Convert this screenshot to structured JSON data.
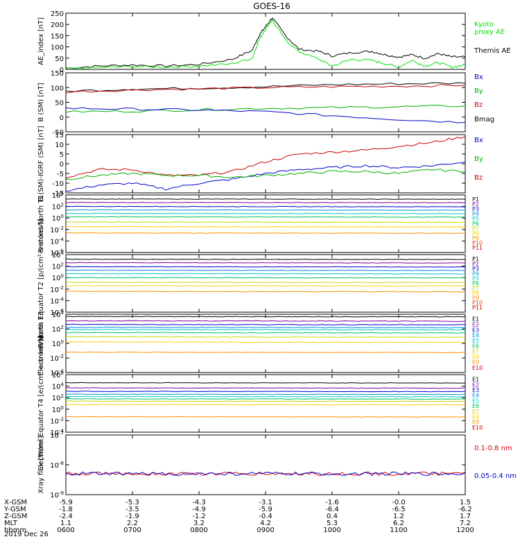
{
  "title": "GOES-16",
  "date_label": "2019 Dec 26",
  "chart_data": [
    {
      "type": "line",
      "ylabel": "AE_index [nT]",
      "ylim": [
        0,
        250
      ],
      "yticks": [
        0,
        50,
        100,
        150,
        200,
        250
      ],
      "yscale": "linear",
      "legend": [
        "Kyoto proxy AE",
        "Themis AE"
      ],
      "legend_colors": [
        "#00e000",
        "#000000"
      ],
      "series": [
        {
          "name": "Themis AE",
          "color": "#000000",
          "values": [
            [
              6,
              5
            ],
            [
              6.5,
              15
            ],
            [
              7,
              20
            ],
            [
              7.5,
              15
            ],
            [
              8,
              22
            ],
            [
              8.5,
              45
            ],
            [
              8.8,
              85
            ],
            [
              8.9,
              150
            ],
            [
              9,
              190
            ],
            [
              9.1,
              230
            ],
            [
              9.3,
              150
            ],
            [
              9.5,
              90
            ],
            [
              9.8,
              80
            ],
            [
              10,
              60
            ],
            [
              10.3,
              75
            ],
            [
              10.6,
              80
            ],
            [
              10.8,
              65
            ],
            [
              11,
              55
            ],
            [
              11.2,
              65
            ],
            [
              11.4,
              50
            ],
            [
              11.6,
              70
            ],
            [
              11.8,
              55
            ],
            [
              12,
              55
            ]
          ]
        },
        {
          "name": "Kyoto proxy AE",
          "color": "#00e000",
          "values": [
            [
              6,
              2
            ],
            [
              6.5,
              8
            ],
            [
              7,
              12
            ],
            [
              7.5,
              10
            ],
            [
              8,
              15
            ],
            [
              8.5,
              25
            ],
            [
              8.8,
              50
            ],
            [
              8.9,
              130
            ],
            [
              9,
              180
            ],
            [
              9.1,
              220
            ],
            [
              9.3,
              130
            ],
            [
              9.5,
              80
            ],
            [
              9.8,
              45
            ],
            [
              10,
              15
            ],
            [
              10.3,
              45
            ],
            [
              10.6,
              40
            ],
            [
              10.8,
              25
            ],
            [
              11,
              10
            ],
            [
              11.2,
              40
            ],
            [
              11.4,
              15
            ],
            [
              11.6,
              30
            ],
            [
              11.8,
              10
            ],
            [
              12,
              20
            ]
          ]
        }
      ]
    },
    {
      "type": "line",
      "ylabel": "B (SM) [nT]",
      "ylim": [
        -50,
        150
      ],
      "yticks": [
        -50,
        0,
        50,
        100,
        150
      ],
      "yscale": "linear",
      "legend": [
        "Bx",
        "By",
        "Bz",
        "Bmag"
      ],
      "legend_colors": [
        "#0000cc",
        "#00b000",
        "#cc0000",
        "#000000"
      ],
      "series": [
        {
          "name": "Bmag",
          "color": "#000000",
          "values": [
            [
              6,
              88
            ],
            [
              7,
              95
            ],
            [
              8,
              98
            ],
            [
              9,
              103
            ],
            [
              10,
              110
            ],
            [
              11,
              113
            ],
            [
              12,
              115
            ]
          ]
        },
        {
          "name": "Bz",
          "color": "#cc0000",
          "values": [
            [
              6,
              85
            ],
            [
              7,
              92
            ],
            [
              8,
              96
            ],
            [
              9,
              100
            ],
            [
              10,
              103
            ],
            [
              11,
              105
            ],
            [
              12,
              108
            ]
          ]
        },
        {
          "name": "By",
          "color": "#00b000",
          "values": [
            [
              6,
              18
            ],
            [
              7,
              20
            ],
            [
              8,
              25
            ],
            [
              9,
              30
            ],
            [
              10,
              32
            ],
            [
              11,
              35
            ],
            [
              12,
              38
            ]
          ]
        },
        {
          "name": "Bx",
          "color": "#0000cc",
          "values": [
            [
              6,
              30
            ],
            [
              7,
              27
            ],
            [
              8,
              24
            ],
            [
              9,
              18
            ],
            [
              10,
              5
            ],
            [
              11,
              -8
            ],
            [
              12,
              -18
            ]
          ]
        }
      ]
    },
    {
      "type": "line",
      "ylabel": "B (SM)-IGRF (SM) [nT]",
      "ylim": [
        -15,
        15
      ],
      "yticks": [
        -15,
        -10,
        -5,
        0,
        5,
        10,
        15
      ],
      "yscale": "linear",
      "legend": [
        "Bx",
        "By",
        "Bz"
      ],
      "legend_colors": [
        "#0000cc",
        "#00b000",
        "#cc0000"
      ],
      "series": [
        {
          "name": "Bz",
          "color": "#cc0000",
          "values": [
            [
              6,
              -7
            ],
            [
              6.5,
              -3
            ],
            [
              7,
              -3
            ],
            [
              7.5,
              -6
            ],
            [
              8,
              -6
            ],
            [
              8.5,
              -4
            ],
            [
              9,
              1
            ],
            [
              9.5,
              5
            ],
            [
              10,
              6
            ],
            [
              10.5,
              7
            ],
            [
              11,
              9
            ],
            [
              11.5,
              11
            ],
            [
              12,
              14
            ]
          ]
        },
        {
          "name": "Bx",
          "color": "#0000cc",
          "values": [
            [
              6,
              -14
            ],
            [
              6.5,
              -11
            ],
            [
              7,
              -10
            ],
            [
              7.5,
              -13
            ],
            [
              8,
              -10
            ],
            [
              8.5,
              -8
            ],
            [
              9,
              -5
            ],
            [
              9.5,
              -3
            ],
            [
              10,
              -2
            ],
            [
              10.5,
              -1
            ],
            [
              11,
              -2
            ],
            [
              11.5,
              -1
            ],
            [
              12,
              1
            ]
          ]
        },
        {
          "name": "By",
          "color": "#00b000",
          "values": [
            [
              6,
              -8
            ],
            [
              6.5,
              -6
            ],
            [
              7,
              -5
            ],
            [
              7.5,
              -6
            ],
            [
              8,
              -6
            ],
            [
              8.5,
              -7
            ],
            [
              9,
              -6
            ],
            [
              9.5,
              -5
            ],
            [
              10,
              -4
            ],
            [
              10.5,
              -4
            ],
            [
              11,
              -5
            ],
            [
              11.5,
              -3
            ],
            [
              12,
              -4
            ]
          ]
        }
      ]
    },
    {
      "type": "line",
      "ylabel": "Protons North T1",
      "ylim": [
        -6,
        4
      ],
      "yticks": [
        4,
        2,
        0,
        -2,
        -4,
        -6
      ],
      "yscale": "log",
      "legend": [
        "P1",
        "P2",
        "P3",
        "P4",
        "P5",
        "P6",
        "P7",
        "P8",
        "P9",
        "P10",
        "P11"
      ],
      "legend_colors": [
        "#000000",
        "#7a00a0",
        "#0000cc",
        "#0090e0",
        "#00c8c8",
        "#00c060",
        "#c8d800",
        "#ffd000",
        "#ff9000",
        "#e04000",
        "#cc0000"
      ],
      "series_levels": [
        3.3,
        2.7,
        2.0,
        1.4,
        0.8,
        0.2,
        -0.7,
        -1.5,
        -2.6
      ]
    },
    {
      "type": "line",
      "ylabel": "Protons Equator T2 [p/(cm²-s-sr-keV)]",
      "ylim": [
        -6,
        4
      ],
      "yticks": [
        4,
        2,
        0,
        -2,
        -4,
        -6
      ],
      "yscale": "log",
      "legend": [
        "P1",
        "P2",
        "P3",
        "P4",
        "P5",
        "P6",
        "P7",
        "P8",
        "P9",
        "P10",
        "P11"
      ],
      "legend_colors": [
        "#000000",
        "#7a00a0",
        "#0000cc",
        "#0090e0",
        "#00c8c8",
        "#00c060",
        "#c8d800",
        "#ffd000",
        "#ff9000",
        "#e04000",
        "#cc0000"
      ],
      "series_levels": [
        3.2,
        2.6,
        1.9,
        1.3,
        0.7,
        0.0,
        -0.8,
        -1.4,
        -2.4
      ]
    },
    {
      "type": "line",
      "ylabel": "Electrons North T3",
      "ylim": [
        -4,
        4
      ],
      "yticks": [
        4,
        2,
        0,
        -2,
        -4
      ],
      "yscale": "log",
      "legend": [
        "E1",
        "E2",
        "E3",
        "E4",
        "E5",
        "E6",
        "E7",
        "E8",
        "E9",
        "E10"
      ],
      "legend_colors": [
        "#000000",
        "#7a00a0",
        "#0000cc",
        "#0090e0",
        "#00c8c8",
        "#00c060",
        "#c8d800",
        "#ffd000",
        "#ff9000",
        "#cc0000"
      ],
      "series_levels": [
        3.7,
        3.1,
        2.6,
        2.2,
        1.9,
        1.5,
        0.9,
        0.2,
        -1.2
      ]
    },
    {
      "type": "line",
      "ylabel": "Electrons Equator T4 [e/(cm²-s-sr-keV)]",
      "ylim": [
        -4,
        6
      ],
      "yticks": [
        6,
        4,
        2,
        0,
        -2,
        -4
      ],
      "yscale": "log",
      "legend": [
        "E1",
        "E2",
        "E3",
        "E4",
        "E5",
        "E6",
        "E7",
        "E8",
        "E9",
        "E10"
      ],
      "legend_colors": [
        "#000000",
        "#7a00a0",
        "#0000cc",
        "#0090e0",
        "#00c8c8",
        "#00c060",
        "#c8d800",
        "#ffd000",
        "#ff9000",
        "#cc0000"
      ],
      "series_levels": [
        4.6,
        3.7,
        3.1,
        2.6,
        2.2,
        1.8,
        1.4,
        0.8,
        -1.3
      ]
    },
    {
      "type": "line",
      "ylabel": "Xray flux [W/m²]",
      "ylim": [
        -9,
        -7
      ],
      "yticks": [
        -7,
        -8,
        -9
      ],
      "yscale": "log",
      "legend": [
        "0.1-0.8 nm",
        "0.05-0.4 nm"
      ],
      "legend_colors": [
        "#dd0000",
        "#0000cc"
      ],
      "series_levels": [
        -8.3,
        -8.3
      ]
    }
  ],
  "x_axis": {
    "xlim": [
      6,
      12
    ],
    "rows": [
      {
        "label": "X-GSM",
        "values": [
          "-5.9",
          "-5.3",
          "-4.3",
          "-3.1",
          "-1.6",
          "-0.0",
          "1.5"
        ]
      },
      {
        "label": "Y-GSM",
        "values": [
          "-1.8",
          "-3.5",
          "-4.9",
          "-5.9",
          "-6.4",
          "-6.5",
          "-6.2"
        ]
      },
      {
        "label": "Z-GSM",
        "values": [
          "-2.4",
          "-1.9",
          "-1.2",
          "-0.4",
          "0.4",
          "1.2",
          "1.7"
        ]
      },
      {
        "label": "MLT",
        "values": [
          "1.1",
          "2.2",
          "3.2",
          "4.2",
          "5.3",
          "6.2",
          "7.2"
        ]
      },
      {
        "label": "hhmm",
        "values": [
          "0600",
          "0700",
          "0800",
          "0900",
          "1000",
          "1100",
          "1200"
        ]
      }
    ]
  }
}
